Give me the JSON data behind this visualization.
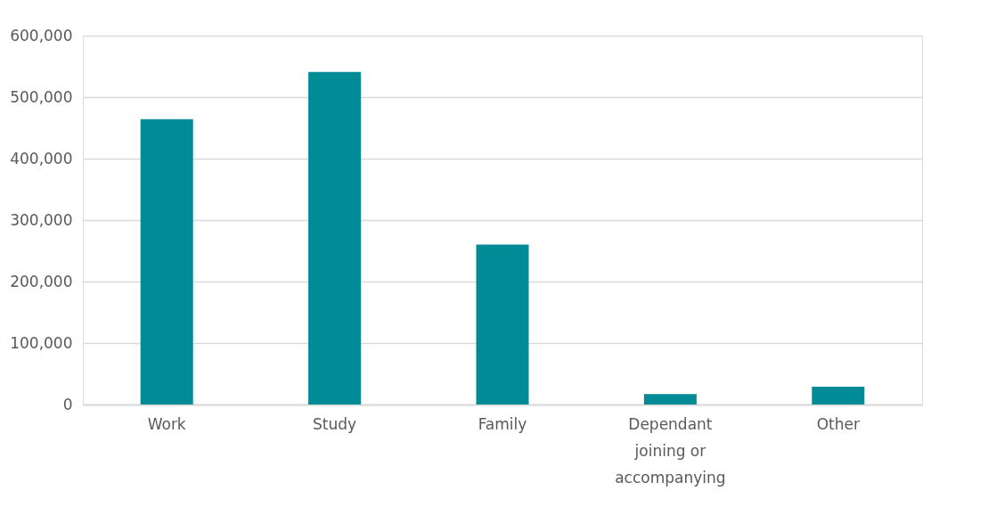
{
  "chart_data": {
    "type": "bar",
    "categories": [
      "Work",
      "Study",
      "Family",
      "Dependant joining or accompanying",
      "Other"
    ],
    "series": [
      {
        "color": "#008b96",
        "values": [
          464000,
          541000,
          260000,
          17000,
          29000
        ]
      }
    ],
    "ylim": [
      0,
      600000
    ],
    "yticks": [
      0,
      {
        "value": 100000,
        "label": "100,000"
      },
      {
        "value": 200000,
        "label": "200,000"
      },
      {
        "value": 300000,
        "label": "300,000"
      },
      {
        "value": 400000,
        "label": "400,000"
      },
      {
        "value": 500000,
        "label": "500,000"
      },
      {
        "value": 600000,
        "label": "600,000"
      }
    ],
    "grid": "y"
  }
}
